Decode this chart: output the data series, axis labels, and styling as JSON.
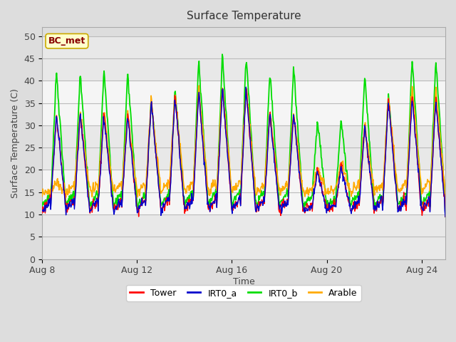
{
  "title": "Surface Temperature",
  "xlabel": "Time",
  "ylabel": "Surface Temperature (C)",
  "ylim": [
    0,
    52
  ],
  "yticks": [
    0,
    5,
    10,
    15,
    20,
    25,
    30,
    35,
    40,
    45,
    50
  ],
  "xtick_labels": [
    "Aug 8",
    "Aug 12",
    "Aug 16",
    "Aug 20",
    "Aug 24"
  ],
  "xtick_positions": [
    0,
    4,
    8,
    12,
    16
  ],
  "series_colors": {
    "Tower": "#ff0000",
    "IRT0_a": "#0000cc",
    "IRT0_b": "#00dd00",
    "Arable": "#ffaa00"
  },
  "annotation_text": "BC_met",
  "annotation_bg": "#ffffcc",
  "annotation_border": "#ccaa00",
  "annotation_text_color": "#880000",
  "fig_bg": "#dddddd",
  "plot_bg_light": "#f5f5f5",
  "plot_bg_dark": "#e8e8e8",
  "num_days": 17,
  "points_per_day": 48,
  "band_color_light": "#f5f5f5",
  "band_color_dark": "#e8e8e8"
}
